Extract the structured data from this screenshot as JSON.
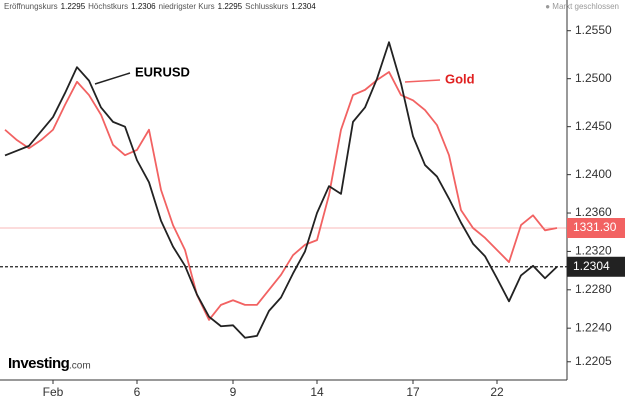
{
  "chart_data": {
    "type": "line",
    "ohlc_legend": [
      {
        "label": "Eröffnungskurs",
        "value": 1.2295
      },
      {
        "label": "Höchstkurs",
        "value": 1.2306
      },
      {
        "label": "niedrigster Kurs",
        "value": 1.2295
      },
      {
        "label": "Schlusskurs",
        "value": 1.2304
      }
    ],
    "status": "Markt geschlossen",
    "watermark": {
      "name": "Investing",
      "suffix": ".com"
    },
    "categories": [
      null,
      null,
      null,
      null,
      "Feb",
      null,
      null,
      null,
      null,
      null,
      null,
      "6",
      null,
      null,
      null,
      null,
      null,
      null,
      null,
      "9",
      null,
      null,
      null,
      null,
      null,
      null,
      "14",
      null,
      null,
      null,
      null,
      null,
      null,
      null,
      "17",
      null,
      null,
      null,
      null,
      null,
      null,
      "22",
      null,
      null,
      null,
      null,
      null
    ],
    "series": [
      {
        "name": "EURUSD",
        "color": "#222222",
        "values": [
          1.242,
          1.2425,
          1.243,
          1.2445,
          1.246,
          1.2485,
          1.2512,
          1.2498,
          1.247,
          1.2455,
          1.245,
          1.2415,
          1.2392,
          1.2352,
          1.2325,
          1.2305,
          1.2275,
          1.2252,
          1.2242,
          1.2243,
          1.223,
          1.2232,
          1.2258,
          1.2272,
          1.2297,
          1.232,
          1.236,
          1.2388,
          1.238,
          1.2455,
          1.247,
          1.25,
          1.2538,
          1.2495,
          1.244,
          1.241,
          1.2398,
          1.2375,
          1.235,
          1.2328,
          1.2315,
          1.2292,
          1.2268,
          1.2295,
          1.2305,
          1.2292,
          1.2304
        ]
      },
      {
        "name": "Gold",
        "color": "#f26262",
        "axis": "y2",
        "values": [
          1348.3,
          1346.5,
          1345.1,
          1346.5,
          1348.3,
          1352.6,
          1356.6,
          1354.3,
          1350.9,
          1345.7,
          1343.9,
          1344.8,
          1348.3,
          1337.9,
          1331.8,
          1327.5,
          1319.7,
          1315.4,
          1318.0,
          1318.8,
          1318.0,
          1318.0,
          1320.6,
          1323.2,
          1326.6,
          1328.4,
          1329.2,
          1337.0,
          1348.3,
          1354.3,
          1355.2,
          1356.9,
          1358.3,
          1354.3,
          1353.4,
          1351.7,
          1349.1,
          1343.9,
          1334.4,
          1331.3,
          1329.6,
          1327.5,
          1325.4,
          1331.8,
          1333.5,
          1330.9,
          1331.3
        ],
        "value_labels": [
          null,
          null,
          null,
          null,
          null,
          null,
          null,
          null,
          null,
          null,
          null,
          null,
          null,
          null,
          null,
          null,
          null,
          null,
          null,
          null,
          null,
          null,
          null,
          null,
          null,
          null,
          null,
          null,
          null,
          null,
          null,
          null,
          null,
          null,
          null,
          null,
          null,
          null,
          null,
          null,
          null,
          null,
          null,
          null,
          null,
          null,
          "1331.30"
        ]
      }
    ],
    "ylim": [
      1.2186,
      1.2582
    ],
    "yticks": [
      {
        "value": 1.255,
        "label": "1.2550"
      },
      {
        "value": 1.25,
        "label": "1.2500"
      },
      {
        "value": 1.245,
        "label": "1.2450"
      },
      {
        "value": 1.24,
        "label": "1.2400"
      },
      {
        "value": 1.236,
        "label": "1.2360"
      },
      {
        "value": 1.232,
        "label": "1.2320"
      },
      {
        "value": 1.228,
        "label": "1.2280"
      },
      {
        "value": 1.224,
        "label": "1.2240"
      },
      1.2205
    ],
    "y2lim": [
      1305,
      1370.75
    ],
    "grid": false
  }
}
